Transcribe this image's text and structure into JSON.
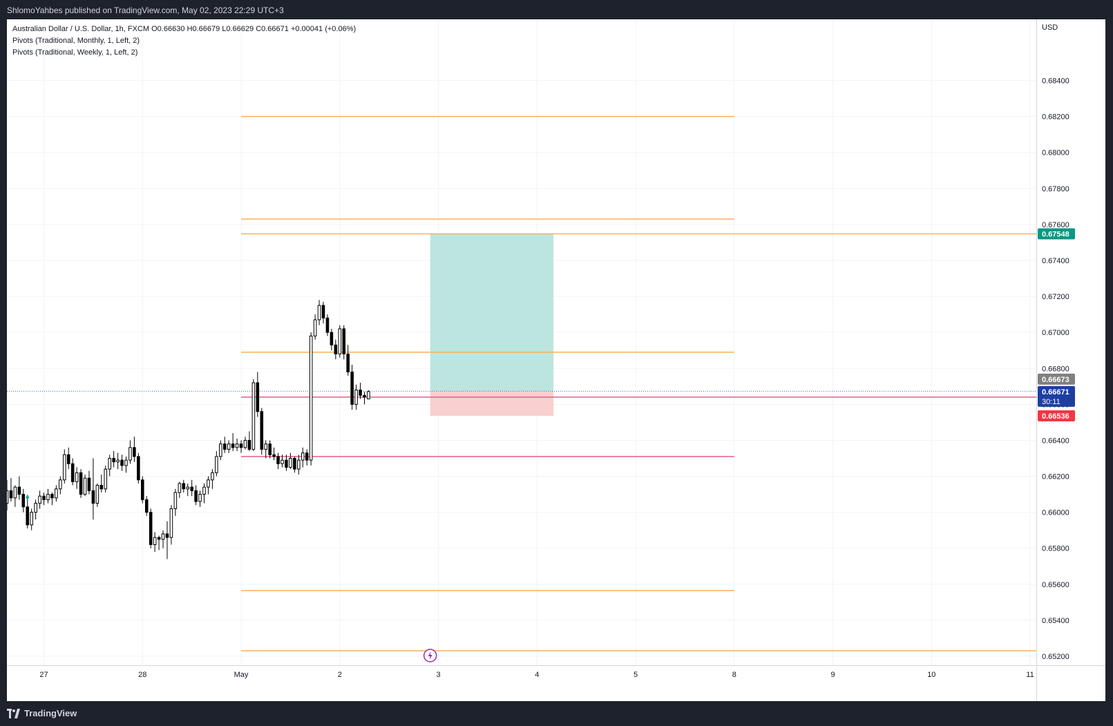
{
  "header": {
    "publish_text": "ShlomoYahbes published on TradingView.com, May 02, 2023 22:29 UTC+3"
  },
  "legend": {
    "symbol_line": "Australian Dollar / U.S. Dollar, 1h, FXCM  O0.66630  H0.66679  L0.66629  C0.66671  +0.00041 (+0.06%)",
    "pivots_monthly": "Pivots (Traditional, Monthly, 1, Left, 2)",
    "pivots_weekly": "Pivots (Traditional, Weekly, 1, Left, 2)"
  },
  "footer": {
    "brand": "TradingView"
  },
  "chart_data": {
    "type": "candlestick",
    "currency": "USD",
    "ylim": [
      0.6515,
      0.6874
    ],
    "y_ticks": [
      "0.68400",
      "0.68200",
      "0.68000",
      "0.67800",
      "0.67600",
      "0.67400",
      "0.67200",
      "0.67000",
      "0.66800",
      "0.66600",
      "0.66400",
      "0.66200",
      "0.66000",
      "0.65800",
      "0.65600",
      "0.65400",
      "0.65200"
    ],
    "x_labels": [
      {
        "label": "27",
        "t": 0
      },
      {
        "label": "28",
        "t": 24
      },
      {
        "label": "May",
        "t": 48
      },
      {
        "label": "2",
        "t": 72
      },
      {
        "label": "3",
        "t": 96
      },
      {
        "label": "4",
        "t": 120
      },
      {
        "label": "5",
        "t": 144
      },
      {
        "label": "8",
        "t": 168
      },
      {
        "label": "9",
        "t": 192
      },
      {
        "label": "10",
        "t": 216
      },
      {
        "label": "11",
        "t": 240
      }
    ],
    "xlim": [
      -9,
      241.5
    ],
    "ohlc": [
      [
        0.6605,
        0.6618,
        0.6601,
        0.6612
      ],
      [
        0.6612,
        0.6619,
        0.6606,
        0.6608
      ],
      [
        0.6608,
        0.6615,
        0.6603,
        0.6614
      ],
      [
        0.6614,
        0.662,
        0.6607,
        0.661
      ],
      [
        0.661,
        0.6613,
        0.66,
        0.6603
      ],
      [
        0.6603,
        0.6608,
        0.6591,
        0.6593
      ],
      [
        0.6593,
        0.6602,
        0.659,
        0.66
      ],
      [
        0.66,
        0.6607,
        0.6596,
        0.6605
      ],
      [
        0.6605,
        0.6612,
        0.6602,
        0.6609
      ],
      [
        0.6609,
        0.6611,
        0.6604,
        0.6607
      ],
      [
        0.6607,
        0.6613,
        0.6605,
        0.661
      ],
      [
        0.661,
        0.6611,
        0.6604,
        0.6608
      ],
      [
        0.6608,
        0.6615,
        0.6606,
        0.6613
      ],
      [
        0.6613,
        0.662,
        0.661,
        0.6618
      ],
      [
        0.6618,
        0.6635,
        0.6616,
        0.6632
      ],
      [
        0.6632,
        0.6636,
        0.6624,
        0.6627
      ],
      [
        0.6627,
        0.663,
        0.6615,
        0.6617
      ],
      [
        0.6617,
        0.6625,
        0.6613,
        0.6622
      ],
      [
        0.6622,
        0.6624,
        0.6608,
        0.661
      ],
      [
        0.661,
        0.6621,
        0.6609,
        0.6619
      ],
      [
        0.6619,
        0.6623,
        0.661,
        0.6612
      ],
      [
        0.6612,
        0.663,
        0.6596,
        0.6605
      ],
      [
        0.6605,
        0.6616,
        0.6603,
        0.6615
      ],
      [
        0.6615,
        0.6621,
        0.6611,
        0.6613
      ],
      [
        0.6613,
        0.6626,
        0.6611,
        0.6624
      ],
      [
        0.6624,
        0.6632,
        0.662,
        0.663
      ],
      [
        0.663,
        0.6634,
        0.6625,
        0.6628
      ],
      [
        0.6628,
        0.6633,
        0.6624,
        0.6629
      ],
      [
        0.6629,
        0.6632,
        0.6623,
        0.6626
      ],
      [
        0.6626,
        0.6631,
        0.6622,
        0.6629
      ],
      [
        0.6629,
        0.664,
        0.6627,
        0.6636
      ],
      [
        0.6636,
        0.6642,
        0.6628,
        0.6631
      ],
      [
        0.6631,
        0.6633,
        0.6616,
        0.6618
      ],
      [
        0.6618,
        0.662,
        0.6605,
        0.6607
      ],
      [
        0.6607,
        0.6609,
        0.6598,
        0.66
      ],
      [
        0.66,
        0.6602,
        0.658,
        0.6582
      ],
      [
        0.6582,
        0.6589,
        0.6578,
        0.6586
      ],
      [
        0.6586,
        0.6587,
        0.6579,
        0.6585
      ],
      [
        0.6585,
        0.659,
        0.658,
        0.6588
      ],
      [
        0.6588,
        0.6595,
        0.6574,
        0.6586
      ],
      [
        0.6586,
        0.6604,
        0.6582,
        0.6602
      ],
      [
        0.6602,
        0.6613,
        0.6598,
        0.6611
      ],
      [
        0.6611,
        0.6617,
        0.6608,
        0.6616
      ],
      [
        0.6616,
        0.6618,
        0.6611,
        0.6613
      ],
      [
        0.6613,
        0.6616,
        0.6609,
        0.6614
      ],
      [
        0.6614,
        0.6618,
        0.6609,
        0.6612
      ],
      [
        0.6612,
        0.6615,
        0.6604,
        0.6606
      ],
      [
        0.6606,
        0.6612,
        0.6603,
        0.661
      ],
      [
        0.661,
        0.6616,
        0.6605,
        0.6614
      ],
      [
        0.6614,
        0.662,
        0.661,
        0.6618
      ],
      [
        0.6618,
        0.6624,
        0.6613,
        0.6622
      ],
      [
        0.6622,
        0.6634,
        0.662,
        0.6631
      ],
      [
        0.6631,
        0.664,
        0.6629,
        0.6638
      ],
      [
        0.6638,
        0.6642,
        0.6633,
        0.6635
      ],
      [
        0.6635,
        0.664,
        0.6633,
        0.6638
      ],
      [
        0.6638,
        0.6644,
        0.6634,
        0.6636
      ],
      [
        0.6636,
        0.6641,
        0.6634,
        0.6638
      ],
      [
        0.6638,
        0.664,
        0.6633,
        0.6636
      ],
      [
        0.6636,
        0.6642,
        0.6635,
        0.664
      ],
      [
        0.664,
        0.6645,
        0.6634,
        0.6635
      ],
      [
        0.6635,
        0.6674,
        0.6634,
        0.6672
      ],
      [
        0.6672,
        0.6678,
        0.6653,
        0.6656
      ],
      [
        0.6656,
        0.6658,
        0.6632,
        0.6635
      ],
      [
        0.6635,
        0.664,
        0.663,
        0.6638
      ],
      [
        0.6638,
        0.664,
        0.663,
        0.6632
      ],
      [
        0.6632,
        0.6636,
        0.6629,
        0.6631
      ],
      [
        0.6631,
        0.6633,
        0.6624,
        0.6627
      ],
      [
        0.6627,
        0.6632,
        0.6625,
        0.6629
      ],
      [
        0.6629,
        0.6632,
        0.6623,
        0.6625
      ],
      [
        0.6625,
        0.6633,
        0.6624,
        0.663
      ],
      [
        0.663,
        0.6631,
        0.6622,
        0.6624
      ],
      [
        0.6624,
        0.6632,
        0.6621,
        0.6629
      ],
      [
        0.6629,
        0.6636,
        0.6625,
        0.6633
      ],
      [
        0.6633,
        0.6635,
        0.6626,
        0.6629
      ],
      [
        0.6629,
        0.67,
        0.6626,
        0.6698
      ],
      [
        0.6698,
        0.671,
        0.6696,
        0.6707
      ],
      [
        0.6707,
        0.6718,
        0.6704,
        0.6715
      ],
      [
        0.6715,
        0.6717,
        0.6705,
        0.6708
      ],
      [
        0.6708,
        0.671,
        0.6698,
        0.67
      ],
      [
        0.67,
        0.6702,
        0.669,
        0.6693
      ],
      [
        0.6693,
        0.6696,
        0.6685,
        0.6688
      ],
      [
        0.6688,
        0.6704,
        0.6686,
        0.6702
      ],
      [
        0.6702,
        0.6704,
        0.6685,
        0.6688
      ],
      [
        0.6688,
        0.6693,
        0.6676,
        0.6678
      ],
      [
        0.6678,
        0.6682,
        0.6657,
        0.666
      ],
      [
        0.666,
        0.6671,
        0.6657,
        0.6668
      ],
      [
        0.6668,
        0.6672,
        0.6663,
        0.6665
      ],
      [
        0.6665,
        0.6667,
        0.666,
        0.6664
      ],
      [
        0.6663,
        0.66679,
        0.66629,
        0.66671
      ]
    ],
    "signal_marker": {
      "t": -4,
      "price": 0.6612,
      "shape": "triangle-up",
      "color": "#26a69a"
    },
    "pivot_levels": [
      {
        "price": 0.682,
        "t_start": 48,
        "t_end": 168,
        "color": "#f7b15b"
      },
      {
        "price": 0.6763,
        "t_start": 48,
        "t_end": 168,
        "color": "#f7b15b"
      },
      {
        "price": 0.67548,
        "t_start": 48,
        "t_end": 241.5,
        "color": "#f7b15b"
      },
      {
        "price": 0.6689,
        "t_start": 48,
        "t_end": 168,
        "color": "#f7b15b"
      },
      {
        "price": 0.6664,
        "t_start": 48,
        "t_end": 241.5,
        "color": "#e35b8f"
      },
      {
        "price": 0.6631,
        "t_start": 48,
        "t_end": 168,
        "color": "#e35b8f"
      },
      {
        "price": 0.65565,
        "t_start": 48,
        "t_end": 168,
        "color": "#f7b15b"
      },
      {
        "price": 0.6523,
        "t_start": 48,
        "t_end": 241.5,
        "color": "#f7b15b"
      }
    ],
    "position": {
      "type": "long",
      "entry": 0.66673,
      "target": 0.67548,
      "stop": 0.66536,
      "t_start": 94,
      "t_end": 124,
      "profit_color": "#bde5e0",
      "loss_color": "#f9cfcf"
    },
    "last_price": {
      "value": "0.66671",
      "countdown": "30:11",
      "color": "#1d3fa0"
    },
    "price_badges": [
      {
        "value": "0.67548",
        "price": 0.67548,
        "color": "#089981"
      },
      {
        "value": "0.66673",
        "price": 0.6674,
        "color": "#808080"
      },
      {
        "value": "0.66536",
        "price": 0.66536,
        "color": "#f23645"
      }
    ],
    "event_marker": {
      "t": 94,
      "icon": "lightning-icon",
      "color": "#9c27b0"
    }
  }
}
